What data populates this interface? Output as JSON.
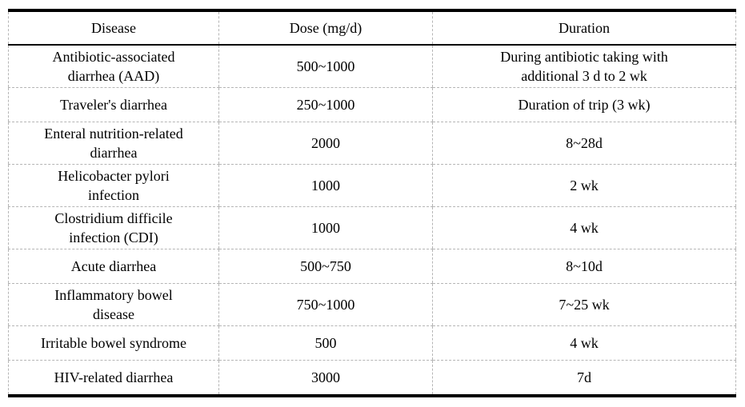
{
  "table": {
    "columns": [
      {
        "label": "Disease"
      },
      {
        "label": "Dose (mg/d)"
      },
      {
        "label": "Duration"
      }
    ],
    "rows": [
      {
        "disease": "Antibiotic-associated\ndiarrhea (AAD)",
        "dose": "500~1000",
        "duration": "During antibiotic taking with\nadditional 3 d to 2 wk"
      },
      {
        "disease": "Traveler's diarrhea",
        "dose": "250~1000",
        "duration": "Duration of trip (3 wk)"
      },
      {
        "disease": "Enteral nutrition-related\ndiarrhea",
        "dose": "2000",
        "duration": "8~28d"
      },
      {
        "disease": "Helicobacter pylori\ninfection",
        "dose": "1000",
        "duration": "2 wk"
      },
      {
        "disease": "Clostridium difficile\ninfection (CDI)",
        "dose": "1000",
        "duration": "4 wk"
      },
      {
        "disease": "Acute diarrhea",
        "dose": "500~750",
        "duration": "8~10d"
      },
      {
        "disease": "Inflammatory bowel\ndisease",
        "dose": "750~1000",
        "duration": "7~25 wk"
      },
      {
        "disease": "Irritable bowel syndrome",
        "dose": "500",
        "duration": "4 wk"
      },
      {
        "disease": "HIV-related diarrhea",
        "dose": "3000",
        "duration": "7d"
      }
    ],
    "colors": {
      "heavy_rule": "#000000",
      "thin_rule": "#000000",
      "dashed_rule": "#b5b5b5",
      "text": "#000000",
      "background": "#ffffff"
    }
  }
}
